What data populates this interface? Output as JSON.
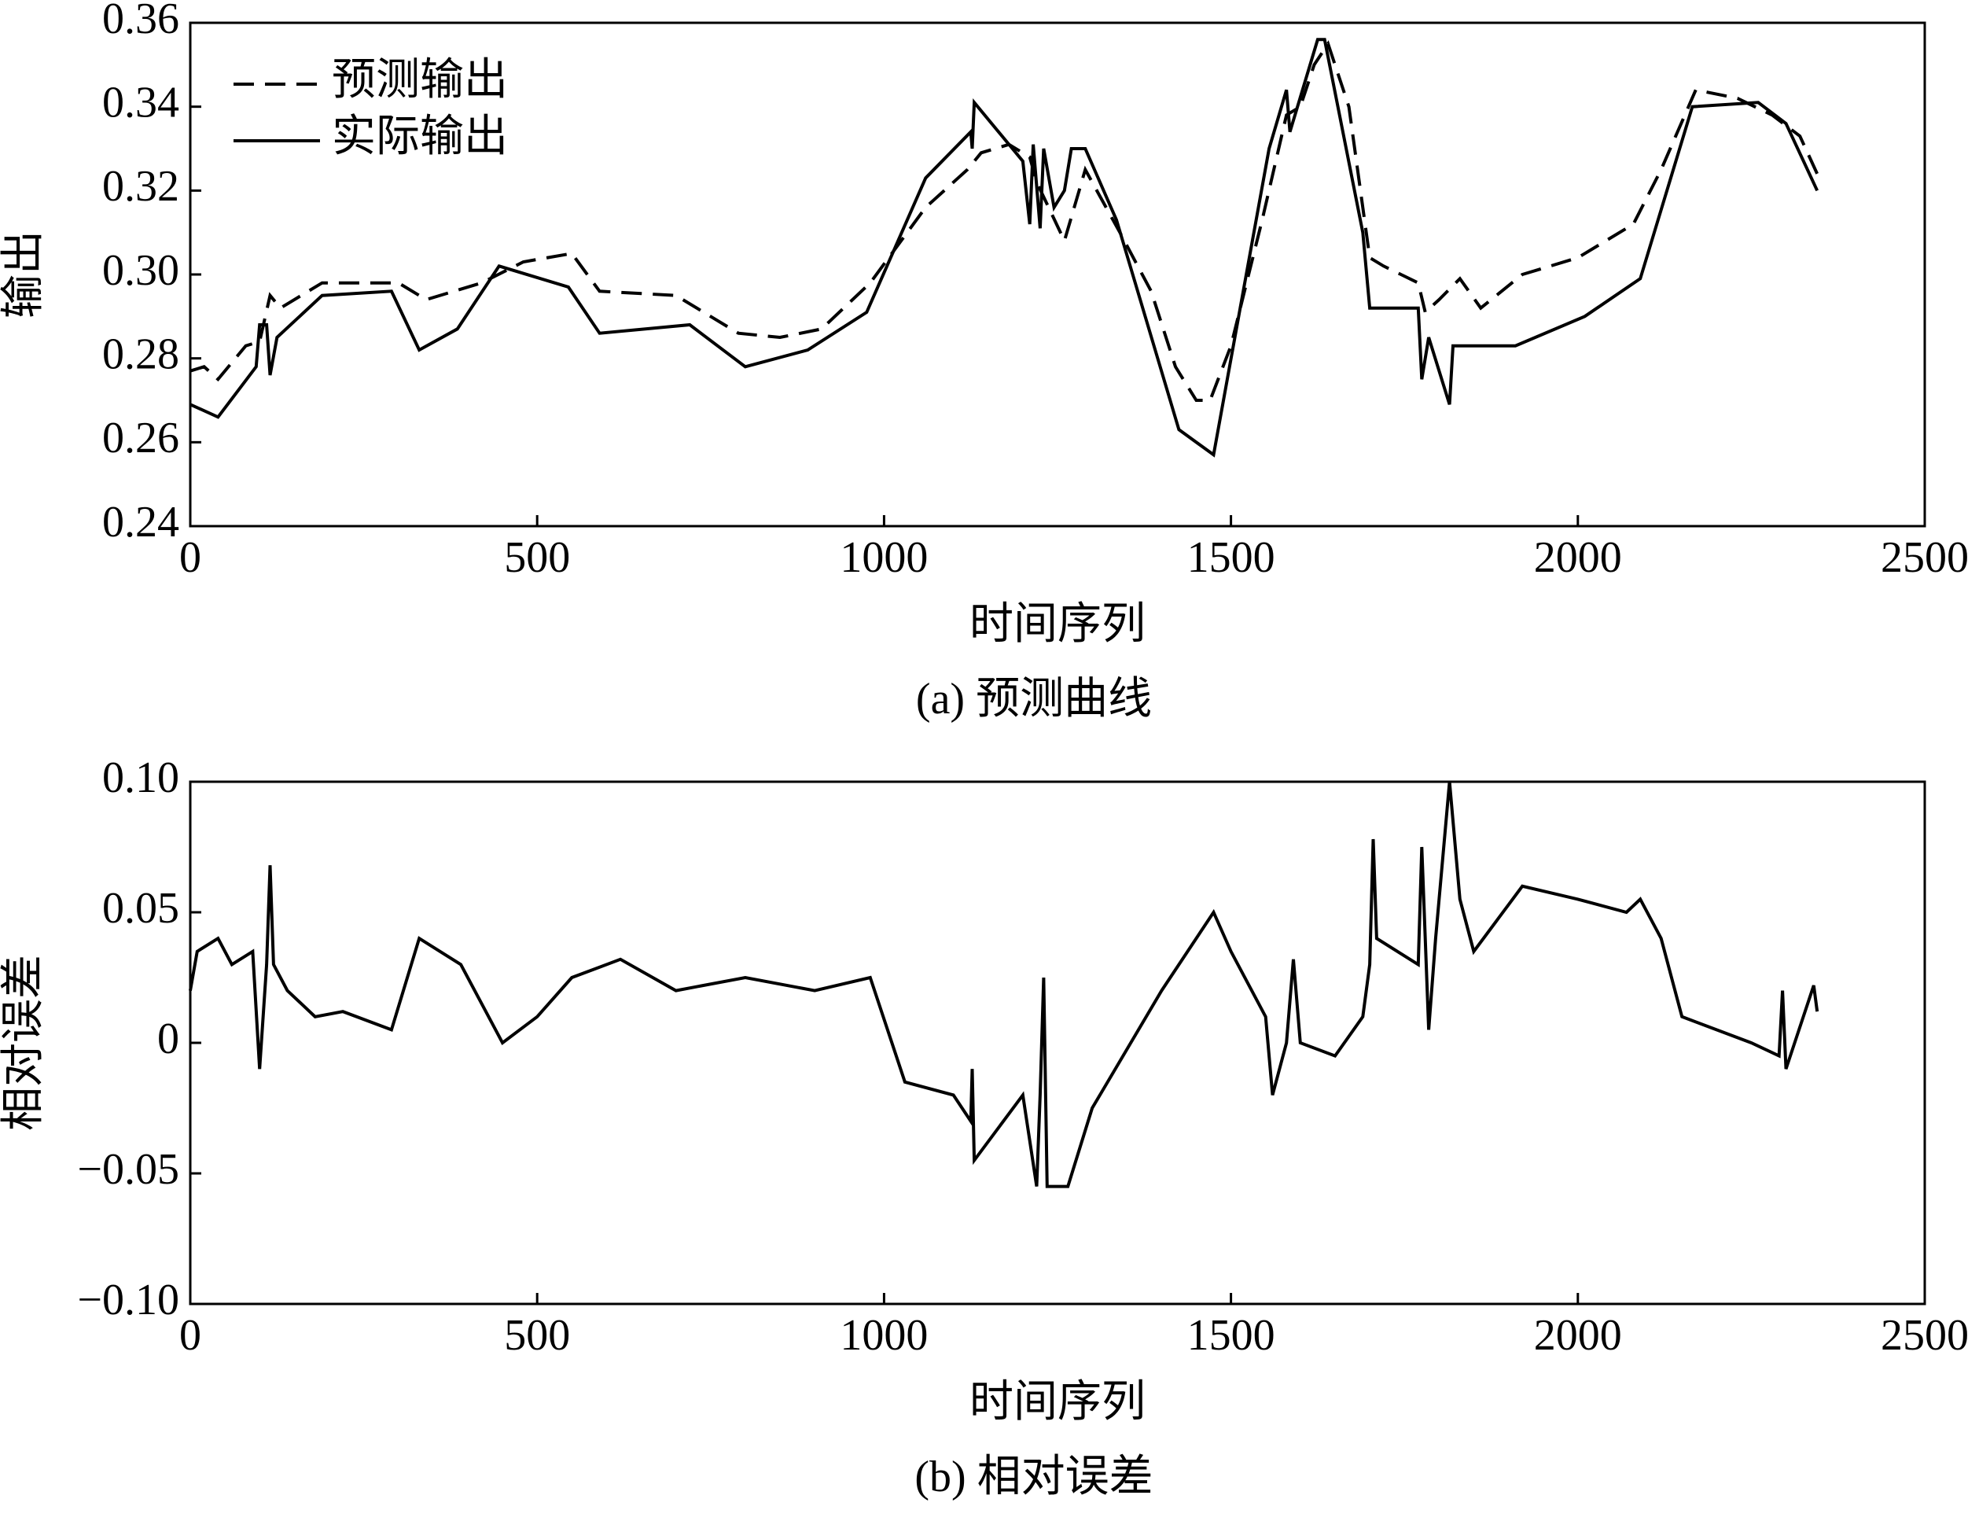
{
  "chart_data": [
    {
      "type": "line",
      "caption": "(a) 预测曲线",
      "xlabel": "时间序列",
      "ylabel": "输出",
      "xlim": [
        0,
        2500
      ],
      "xticks": [
        0,
        500,
        1000,
        1500,
        2000,
        2500
      ],
      "ylim": [
        0.24,
        0.36
      ],
      "yticks": [
        0.24,
        0.26,
        0.28,
        {
          "value": 0.3,
          "label": "0.30"
        },
        0.32,
        0.34,
        0.36
      ],
      "legend": "upper-left",
      "series": [
        {
          "name": "预测输出",
          "color": "#000000",
          "linestyle": "dashed",
          "x": [
            0,
            20,
            40,
            80,
            100,
            115,
            130,
            190,
            300,
            340,
            420,
            480,
            550,
            590,
            700,
            790,
            850,
            910,
            980,
            1060,
            1120,
            1140,
            1180,
            1210,
            1220,
            1240,
            1260,
            1290,
            1340,
            1385,
            1420,
            1450,
            1470,
            1500,
            1545,
            1580,
            1600,
            1620,
            1640,
            1670,
            1700,
            1720,
            1745,
            1770,
            1780,
            1800,
            1830,
            1860,
            1920,
            2000,
            2080,
            2120,
            2170,
            2230,
            2280,
            2320,
            2345
          ],
          "values": [
            0.277,
            0.278,
            0.275,
            0.283,
            0.284,
            0.295,
            0.292,
            0.298,
            0.298,
            0.294,
            0.298,
            0.303,
            0.305,
            0.296,
            0.295,
            0.286,
            0.285,
            0.287,
            0.298,
            0.316,
            0.325,
            0.329,
            0.331,
            0.328,
            0.322,
            0.315,
            0.308,
            0.325,
            0.31,
            0.296,
            0.278,
            0.27,
            0.27,
            0.283,
            0.313,
            0.338,
            0.34,
            0.35,
            0.355,
            0.34,
            0.304,
            0.302,
            0.3,
            0.298,
            0.291,
            0.294,
            0.299,
            0.292,
            0.3,
            0.304,
            0.312,
            0.325,
            0.344,
            0.342,
            0.338,
            0.333,
            0.324
          ]
        },
        {
          "name": "实际输出",
          "color": "#000000",
          "linestyle": "solid",
          "x": [
            0,
            40,
            95,
            100,
            110,
            115,
            125,
            190,
            290,
            330,
            385,
            445,
            545,
            590,
            720,
            800,
            890,
            975,
            1060,
            1125,
            1127,
            1130,
            1200,
            1210,
            1215,
            1225,
            1230,
            1245,
            1260,
            1270,
            1290,
            1335,
            1425,
            1475,
            1555,
            1580,
            1585,
            1625,
            1635,
            1690,
            1700,
            1770,
            1775,
            1785,
            1815,
            1820,
            1910,
            2010,
            2090,
            2165,
            2260,
            2300,
            2345
          ],
          "values": [
            0.269,
            0.266,
            0.278,
            0.288,
            0.288,
            0.276,
            0.285,
            0.295,
            0.296,
            0.282,
            0.287,
            0.302,
            0.297,
            0.286,
            0.288,
            0.278,
            0.282,
            0.291,
            0.323,
            0.334,
            0.33,
            0.341,
            0.327,
            0.312,
            0.331,
            0.311,
            0.33,
            0.316,
            0.32,
            0.33,
            0.33,
            0.313,
            0.263,
            0.257,
            0.33,
            0.344,
            0.334,
            0.356,
            0.356,
            0.31,
            0.292,
            0.292,
            0.275,
            0.285,
            0.269,
            0.283,
            0.283,
            0.29,
            0.299,
            0.34,
            0.341,
            0.336,
            0.32
          ]
        }
      ]
    },
    {
      "type": "line",
      "caption": "(b) 相对误差",
      "xlabel": "时间序列",
      "ylabel": "相对误差",
      "xlim": [
        0,
        2500
      ],
      "xticks": [
        0,
        500,
        1000,
        1500,
        2000,
        2500
      ],
      "ylim": [
        -0.1,
        0.1
      ],
      "yticks": [
        {
          "value": -0.1,
          "label": "−0.10"
        },
        {
          "value": -0.05,
          "label": "−0.05"
        },
        0,
        0.05,
        {
          "value": 0.1,
          "label": "0.10"
        }
      ],
      "color": "#000000",
      "x": [
        0,
        10,
        40,
        60,
        90,
        100,
        110,
        115,
        120,
        140,
        180,
        220,
        290,
        330,
        390,
        450,
        500,
        550,
        620,
        700,
        800,
        900,
        980,
        1030,
        1100,
        1125,
        1127,
        1130,
        1200,
        1220,
        1225,
        1230,
        1235,
        1265,
        1300,
        1400,
        1475,
        1500,
        1550,
        1560,
        1580,
        1590,
        1600,
        1650,
        1690,
        1700,
        1705,
        1710,
        1770,
        1775,
        1785,
        1795,
        1815,
        1830,
        1850,
        1920,
        2000,
        2070,
        2090,
        2120,
        2150,
        2250,
        2290,
        2295,
        2300,
        2340,
        2345
      ],
      "values": [
        0.02,
        0.035,
        0.04,
        0.03,
        0.035,
        -0.01,
        0.03,
        0.068,
        0.03,
        0.02,
        0.01,
        0.012,
        0.005,
        0.04,
        0.03,
        0.0,
        0.01,
        0.025,
        0.032,
        0.02,
        0.025,
        0.02,
        0.025,
        -0.015,
        -0.02,
        -0.03,
        -0.01,
        -0.045,
        -0.02,
        -0.055,
        -0.02,
        0.025,
        -0.055,
        -0.055,
        -0.025,
        0.02,
        0.05,
        0.035,
        0.01,
        -0.02,
        0.0,
        0.032,
        0.0,
        -0.005,
        0.01,
        0.03,
        0.078,
        0.04,
        0.03,
        0.075,
        0.005,
        0.04,
        0.1,
        0.055,
        0.035,
        0.06,
        0.055,
        0.05,
        0.055,
        0.04,
        0.01,
        0.0,
        -0.005,
        0.02,
        -0.01,
        0.022,
        0.012
      ]
    }
  ]
}
